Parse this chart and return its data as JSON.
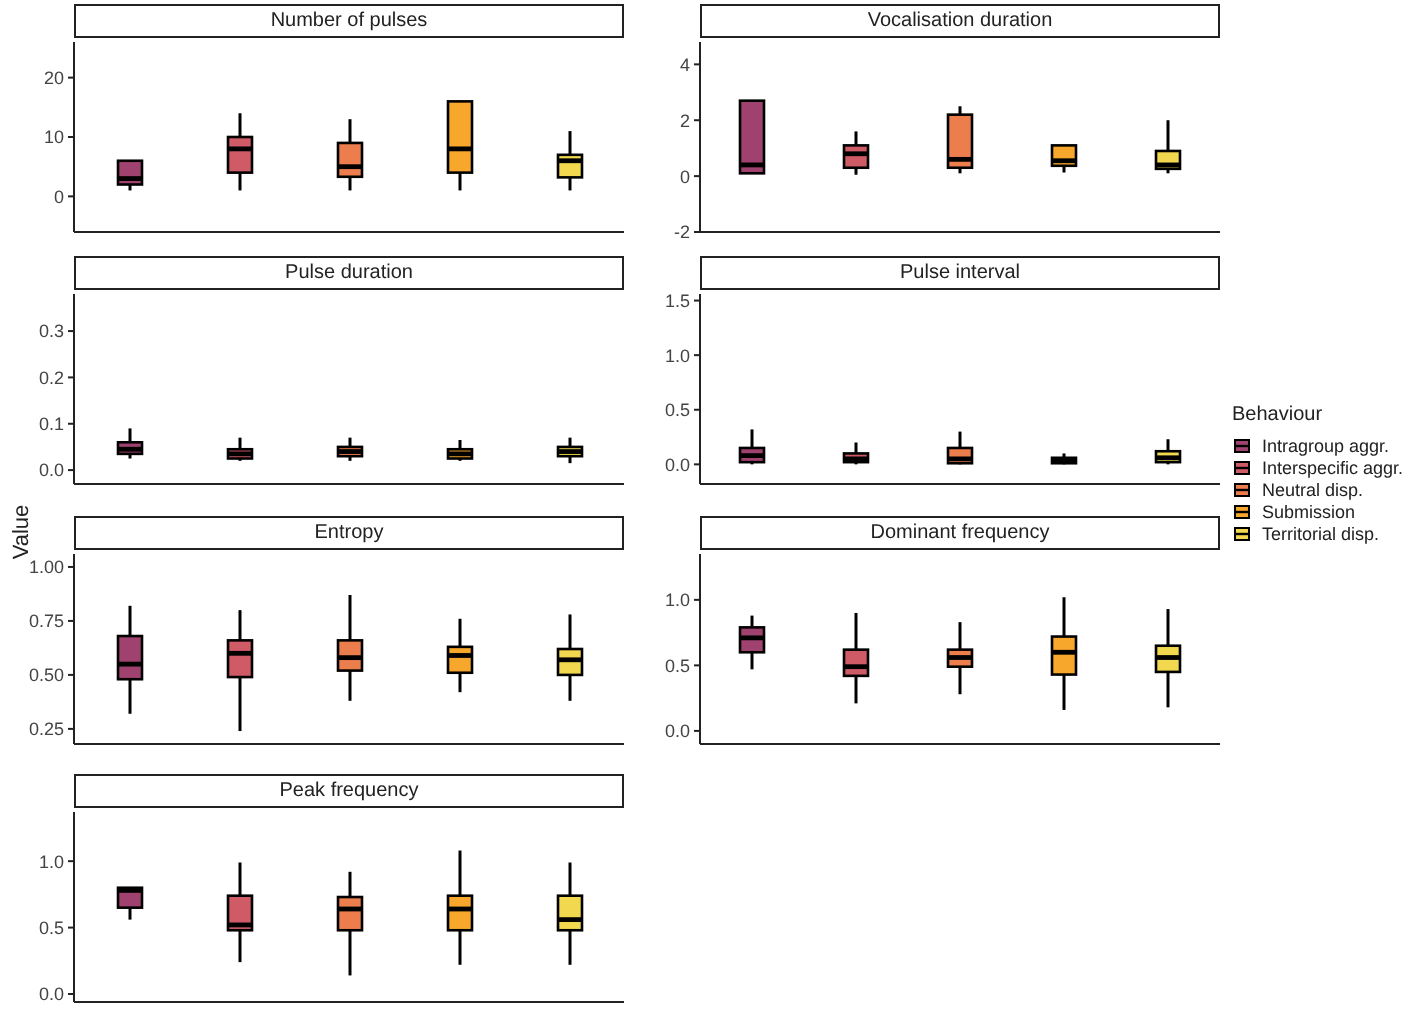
{
  "chart_data": [
    {
      "type": "box",
      "title": "Number of pulses",
      "categories": [
        null,
        null,
        null,
        null,
        null
      ],
      "ylim": [
        -6,
        26
      ],
      "yticks": [
        0,
        10,
        20
      ],
      "tick_labels": "y",
      "series": [
        {
          "color": "#a0426f",
          "boxes": [
            {
              "low": 1,
              "q1": 2,
              "median": 3,
              "q3": 6,
              "high": 6
            },
            null,
            null,
            null,
            null
          ]
        },
        {
          "color": "#cf5b66",
          "boxes": [
            null,
            {
              "low": 1,
              "q1": 4,
              "median": 8,
              "q3": 10,
              "high": 14
            },
            null,
            null,
            null
          ]
        },
        {
          "color": "#ec7e4d",
          "boxes": [
            null,
            null,
            {
              "low": 1,
              "q1": 3.3,
              "median": 5,
              "q3": 9,
              "high": 13
            },
            null,
            null
          ]
        },
        {
          "color": "#f6a72c",
          "boxes": [
            null,
            null,
            null,
            {
              "low": 1,
              "q1": 4,
              "median": 8,
              "q3": 16,
              "high": 16
            },
            null
          ]
        },
        {
          "color": "#f1d84f",
          "boxes": [
            null,
            null,
            null,
            null,
            {
              "low": 1,
              "q1": 3.2,
              "median": 6,
              "q3": 7,
              "high": 11
            }
          ]
        }
      ]
    },
    {
      "type": "box",
      "title": "Vocalisation duration",
      "categories": [
        null,
        null,
        null,
        null,
        null
      ],
      "ylim": [
        -2,
        4.8
      ],
      "yticks": [
        -2,
        0,
        2,
        4
      ],
      "tick_labels": "y",
      "series": [
        {
          "color": "#a0426f",
          "boxes": [
            {
              "low": 0.1,
              "q1": 0.1,
              "median": 0.4,
              "q3": 2.7,
              "high": 2.7
            },
            null,
            null,
            null,
            null
          ]
        },
        {
          "color": "#cf5b66",
          "boxes": [
            null,
            {
              "low": 0.05,
              "q1": 0.3,
              "median": 0.8,
              "q3": 1.1,
              "high": 1.6
            },
            null,
            null,
            null
          ]
        },
        {
          "color": "#ec7e4d",
          "boxes": [
            null,
            null,
            {
              "low": 0.1,
              "q1": 0.3,
              "median": 0.6,
              "q3": 2.2,
              "high": 2.5
            },
            null,
            null
          ]
        },
        {
          "color": "#f6a72c",
          "boxes": [
            null,
            null,
            null,
            {
              "low": 0.13,
              "q1": 0.37,
              "median": 0.55,
              "q3": 1.1,
              "high": 1.1
            },
            null
          ]
        },
        {
          "color": "#f1d84f",
          "boxes": [
            null,
            null,
            null,
            null,
            {
              "low": 0.1,
              "q1": 0.26,
              "median": 0.4,
              "q3": 0.9,
              "high": 2
            }
          ]
        }
      ]
    },
    {
      "type": "box",
      "title": "Pulse duration",
      "categories": [
        null,
        null,
        null,
        null,
        null
      ],
      "ylim": [
        -0.03,
        0.38
      ],
      "yticks": [
        {
          "value": 0,
          "label": "0.0"
        },
        0.1,
        0.2,
        0.3
      ],
      "tick_labels": "y",
      "series": [
        {
          "color": "#a0426f",
          "boxes": [
            {
              "low": 0.025,
              "q1": 0.035,
              "median": 0.045,
              "q3": 0.06,
              "high": 0.09
            },
            null,
            null,
            null,
            null
          ]
        },
        {
          "color": "#cf5b66",
          "boxes": [
            null,
            {
              "low": 0.02,
              "q1": 0.025,
              "median": 0.035,
              "q3": 0.045,
              "high": 0.07
            },
            null,
            null,
            null
          ]
        },
        {
          "color": "#ec7e4d",
          "boxes": [
            null,
            null,
            {
              "low": 0.02,
              "q1": 0.03,
              "median": 0.04,
              "q3": 0.05,
              "high": 0.07
            },
            null,
            null
          ]
        },
        {
          "color": "#f6a72c",
          "boxes": [
            null,
            null,
            null,
            {
              "low": 0.02,
              "q1": 0.025,
              "median": 0.035,
              "q3": 0.045,
              "high": 0.065
            },
            null
          ]
        },
        {
          "color": "#f1d84f",
          "boxes": [
            null,
            null,
            null,
            null,
            {
              "low": 0.015,
              "q1": 0.03,
              "median": 0.04,
              "q3": 0.05,
              "high": 0.07
            }
          ]
        }
      ]
    },
    {
      "type": "box",
      "title": "Pulse interval",
      "categories": [
        null,
        null,
        null,
        null,
        null
      ],
      "ylim": [
        -0.18,
        1.56
      ],
      "yticks": [
        {
          "value": 0,
          "label": "0.0"
        },
        0.5,
        {
          "value": 1,
          "label": "1.0"
        },
        1.5
      ],
      "tick_labels": "y",
      "legend": "right",
      "legend_title": "Behaviour",
      "series": [
        {
          "name": "Intragroup aggr.",
          "color": "#a0426f",
          "boxes": [
            {
              "low": 0,
              "q1": 0.02,
              "median": 0.08,
              "q3": 0.15,
              "high": 0.32
            },
            null,
            null,
            null,
            null
          ]
        },
        {
          "name": "Interspecific aggr.",
          "color": "#cf5b66",
          "boxes": [
            null,
            {
              "low": 0,
              "q1": 0.02,
              "median": 0.05,
              "q3": 0.1,
              "high": 0.2
            },
            null,
            null,
            null
          ]
        },
        {
          "name": "Neutral disp.",
          "color": "#ec7e4d",
          "boxes": [
            null,
            null,
            {
              "low": 0,
              "q1": 0.01,
              "median": 0.05,
              "q3": 0.15,
              "high": 0.3
            },
            null,
            null
          ]
        },
        {
          "name": "Submission",
          "color": "#f6a72c",
          "boxes": [
            null,
            null,
            null,
            {
              "low": 0,
              "q1": 0.01,
              "median": 0.03,
              "q3": 0.06,
              "high": 0.1
            },
            null
          ]
        },
        {
          "name": "Territorial disp.",
          "color": "#f1d84f",
          "boxes": [
            null,
            null,
            null,
            null,
            {
              "low": 0,
              "q1": 0.02,
              "median": 0.06,
              "q3": 0.12,
              "high": 0.23
            }
          ]
        }
      ]
    },
    {
      "type": "box",
      "title": "Entropy",
      "ylabel": "Value",
      "categories": [
        null,
        null,
        null,
        null,
        null
      ],
      "ylim": [
        0.18,
        1.06
      ],
      "yticks": [
        0.25,
        {
          "value": 0.5,
          "label": "0.50"
        },
        0.75,
        {
          "value": 1,
          "label": "1.00"
        }
      ],
      "tick_labels": "y",
      "series": [
        {
          "color": "#a0426f",
          "boxes": [
            {
              "low": 0.32,
              "q1": 0.48,
              "median": 0.55,
              "q3": 0.68,
              "high": 0.82
            },
            null,
            null,
            null,
            null
          ]
        },
        {
          "color": "#cf5b66",
          "boxes": [
            null,
            {
              "low": 0.24,
              "q1": 0.49,
              "median": 0.6,
              "q3": 0.66,
              "high": 0.8
            },
            null,
            null,
            null
          ]
        },
        {
          "color": "#ec7e4d",
          "boxes": [
            null,
            null,
            {
              "low": 0.38,
              "q1": 0.52,
              "median": 0.58,
              "q3": 0.66,
              "high": 0.87
            },
            null,
            null
          ]
        },
        {
          "color": "#f6a72c",
          "boxes": [
            null,
            null,
            null,
            {
              "low": 0.42,
              "q1": 0.51,
              "median": 0.59,
              "q3": 0.63,
              "high": 0.76
            },
            null
          ]
        },
        {
          "color": "#f1d84f",
          "boxes": [
            null,
            null,
            null,
            null,
            {
              "low": 0.38,
              "q1": 0.5,
              "median": 0.57,
              "q3": 0.62,
              "high": 0.78
            }
          ]
        }
      ]
    },
    {
      "type": "box",
      "title": "Dominant frequency",
      "categories": [
        null,
        null,
        null,
        null,
        null
      ],
      "ylim": [
        -0.1,
        1.35
      ],
      "yticks": [
        {
          "value": 0,
          "label": "0.0"
        },
        0.5,
        {
          "value": 1,
          "label": "1.0"
        }
      ],
      "tick_labels": "y",
      "series": [
        {
          "color": "#a0426f",
          "boxes": [
            {
              "low": 0.47,
              "q1": 0.6,
              "median": 0.71,
              "q3": 0.79,
              "high": 0.88
            },
            null,
            null,
            null,
            null
          ]
        },
        {
          "color": "#cf5b66",
          "boxes": [
            null,
            {
              "low": 0.21,
              "q1": 0.42,
              "median": 0.49,
              "q3": 0.62,
              "high": 0.9
            },
            null,
            null,
            null
          ]
        },
        {
          "color": "#ec7e4d",
          "boxes": [
            null,
            null,
            {
              "low": 0.28,
              "q1": 0.49,
              "median": 0.56,
              "q3": 0.62,
              "high": 0.83
            },
            null,
            null
          ]
        },
        {
          "color": "#f6a72c",
          "boxes": [
            null,
            null,
            null,
            {
              "low": 0.16,
              "q1": 0.43,
              "median": 0.6,
              "q3": 0.72,
              "high": 1.02
            },
            null
          ]
        },
        {
          "color": "#f1d84f",
          "boxes": [
            null,
            null,
            null,
            null,
            {
              "low": 0.18,
              "q1": 0.45,
              "median": 0.56,
              "q3": 0.65,
              "high": 0.93
            }
          ]
        }
      ]
    },
    {
      "type": "box",
      "title": "Peak frequency",
      "categories": [
        null,
        null,
        null,
        null,
        null
      ],
      "ylim": [
        -0.06,
        1.37
      ],
      "yticks": [
        {
          "value": 0,
          "label": "0.0"
        },
        0.5,
        {
          "value": 1,
          "label": "1.0"
        }
      ],
      "tick_labels": "y",
      "series": [
        {
          "color": "#a0426f",
          "boxes": [
            {
              "low": 0.56,
              "q1": 0.65,
              "median": 0.78,
              "q3": 0.8,
              "high": 0.8
            },
            null,
            null,
            null,
            null
          ]
        },
        {
          "color": "#cf5b66",
          "boxes": [
            null,
            {
              "low": 0.24,
              "q1": 0.48,
              "median": 0.52,
              "q3": 0.74,
              "high": 0.99
            },
            null,
            null,
            null
          ]
        },
        {
          "color": "#ec7e4d",
          "boxes": [
            null,
            null,
            {
              "low": 0.14,
              "q1": 0.48,
              "median": 0.64,
              "q3": 0.73,
              "high": 0.92
            },
            null,
            null
          ]
        },
        {
          "color": "#f6a72c",
          "boxes": [
            null,
            null,
            null,
            {
              "low": 0.22,
              "q1": 0.48,
              "median": 0.64,
              "q3": 0.74,
              "high": 1.08
            },
            null
          ]
        },
        {
          "color": "#f1d84f",
          "boxes": [
            null,
            null,
            null,
            null,
            {
              "low": 0.22,
              "q1": 0.48,
              "median": 0.56,
              "q3": 0.74,
              "high": 0.99
            }
          ]
        }
      ]
    }
  ]
}
